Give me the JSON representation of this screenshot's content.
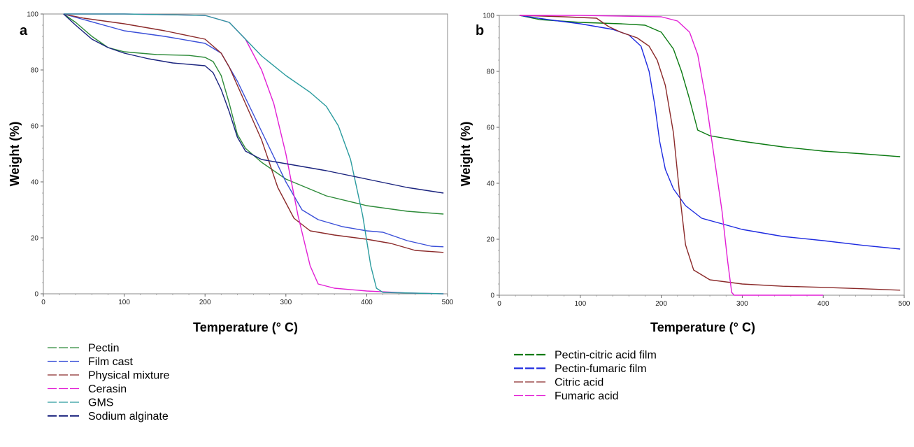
{
  "chart_data": [
    {
      "panel_label": "a",
      "type": "line",
      "xlabel": "Temperature (° C)",
      "ylabel": "Weight (%)",
      "xlim": [
        0,
        500
      ],
      "ylim": [
        0,
        100
      ],
      "xticks": [
        0,
        100,
        200,
        300,
        400,
        500
      ],
      "yticks": [
        0,
        20,
        40,
        60,
        80,
        100
      ],
      "grid": false,
      "legend_position": "below",
      "series": [
        {
          "name": "Pectin",
          "color": "#2e8b3a",
          "dash": "none",
          "points": [
            [
              25,
              100
            ],
            [
              40,
              97
            ],
            [
              60,
              92
            ],
            [
              80,
              88
            ],
            [
              100,
              86.5
            ],
            [
              140,
              85.5
            ],
            [
              180,
              85.2
            ],
            [
              200,
              84.5
            ],
            [
              210,
              83
            ],
            [
              220,
              78
            ],
            [
              230,
              68
            ],
            [
              240,
              57
            ],
            [
              250,
              52
            ],
            [
              270,
              47
            ],
            [
              300,
              41
            ],
            [
              350,
              35
            ],
            [
              400,
              31.5
            ],
            [
              450,
              29.5
            ],
            [
              495,
              28.5
            ]
          ]
        },
        {
          "name": "Film cast",
          "color": "#3a4fd8",
          "dash": "none",
          "points": [
            [
              25,
              100
            ],
            [
              50,
              98
            ],
            [
              100,
              94
            ],
            [
              150,
              92
            ],
            [
              200,
              89.5
            ],
            [
              220,
              86
            ],
            [
              240,
              76
            ],
            [
              260,
              64
            ],
            [
              280,
              52
            ],
            [
              300,
              40
            ],
            [
              320,
              30
            ],
            [
              340,
              26.5
            ],
            [
              370,
              24
            ],
            [
              400,
              22.5
            ],
            [
              420,
              22
            ],
            [
              450,
              19
            ],
            [
              480,
              17
            ],
            [
              495,
              16.8
            ]
          ]
        },
        {
          "name": "Physical mixture",
          "color": "#8b2a2a",
          "dash": "none",
          "points": [
            [
              25,
              100
            ],
            [
              50,
              98.5
            ],
            [
              100,
              96.5
            ],
            [
              150,
              94
            ],
            [
              200,
              91
            ],
            [
              220,
              86
            ],
            [
              230,
              81
            ],
            [
              250,
              68
            ],
            [
              270,
              55
            ],
            [
              290,
              38
            ],
            [
              310,
              27
            ],
            [
              330,
              22.5
            ],
            [
              360,
              21
            ],
            [
              400,
              19.5
            ],
            [
              430,
              18
            ],
            [
              460,
              15.5
            ],
            [
              495,
              14.8
            ]
          ]
        },
        {
          "name": "Cerasin",
          "color": "#e21fd5",
          "dash": "none",
          "points": [
            [
              25,
              100
            ],
            [
              100,
              100
            ],
            [
              200,
              99.5
            ],
            [
              230,
              97
            ],
            [
              250,
              91
            ],
            [
              270,
              80
            ],
            [
              285,
              68
            ],
            [
              300,
              50
            ],
            [
              315,
              28
            ],
            [
              330,
              10
            ],
            [
              340,
              3.5
            ],
            [
              360,
              2
            ],
            [
              400,
              1
            ],
            [
              450,
              0.3
            ],
            [
              495,
              0
            ]
          ]
        },
        {
          "name": "GMS",
          "color": "#2a9b9e",
          "dash": "none",
          "points": [
            [
              25,
              100
            ],
            [
              100,
              100
            ],
            [
              200,
              99.5
            ],
            [
              230,
              97
            ],
            [
              250,
              91
            ],
            [
              270,
              85
            ],
            [
              300,
              78
            ],
            [
              330,
              72
            ],
            [
              350,
              67
            ],
            [
              365,
              60
            ],
            [
              380,
              48
            ],
            [
              395,
              28
            ],
            [
              405,
              10
            ],
            [
              412,
              2
            ],
            [
              420,
              0.5
            ],
            [
              495,
              0
            ]
          ]
        },
        {
          "name": "Sodium alginate",
          "color": "#1a237e",
          "dash": "none",
          "points": [
            [
              25,
              100
            ],
            [
              40,
              96
            ],
            [
              60,
              91
            ],
            [
              80,
              88
            ],
            [
              100,
              86
            ],
            [
              130,
              84
            ],
            [
              160,
              82.5
            ],
            [
              200,
              81.5
            ],
            [
              210,
              79
            ],
            [
              220,
              73
            ],
            [
              230,
              65
            ],
            [
              240,
              56
            ],
            [
              250,
              51
            ],
            [
              270,
              48
            ],
            [
              300,
              46.5
            ],
            [
              350,
              44
            ],
            [
              400,
              41
            ],
            [
              450,
              38
            ],
            [
              495,
              36
            ]
          ]
        }
      ]
    },
    {
      "panel_label": "b",
      "type": "line",
      "xlabel": "Temperature (° C)",
      "ylabel": "Weight (%)",
      "xlim": [
        0,
        500
      ],
      "ylim": [
        0,
        100
      ],
      "xticks": [
        0,
        100,
        200,
        300,
        400,
        500
      ],
      "yticks": [
        0,
        20,
        40,
        60,
        80,
        100
      ],
      "grid": false,
      "legend_position": "below",
      "series": [
        {
          "name": "Pectin-citric acid film",
          "color": "#0b7a12",
          "dash": "none",
          "points": [
            [
              25,
              100
            ],
            [
              50,
              98.5
            ],
            [
              100,
              97.5
            ],
            [
              150,
              97
            ],
            [
              180,
              96.5
            ],
            [
              200,
              94
            ],
            [
              215,
              88
            ],
            [
              225,
              80
            ],
            [
              235,
              70
            ],
            [
              245,
              59
            ],
            [
              260,
              57
            ],
            [
              300,
              55
            ],
            [
              350,
              53
            ],
            [
              400,
              51.5
            ],
            [
              450,
              50.5
            ],
            [
              495,
              49.5
            ]
          ]
        },
        {
          "name": "Pectin-fumaric film",
          "color": "#1e2be0",
          "dash": "none",
          "points": [
            [
              25,
              100
            ],
            [
              60,
              98.5
            ],
            [
              100,
              97
            ],
            [
              140,
              95
            ],
            [
              160,
              93
            ],
            [
              175,
              89
            ],
            [
              185,
              80
            ],
            [
              192,
              68
            ],
            [
              198,
              55
            ],
            [
              205,
              45
            ],
            [
              215,
              38
            ],
            [
              230,
              32
            ],
            [
              250,
              27.5
            ],
            [
              300,
              23.5
            ],
            [
              350,
              21
            ],
            [
              400,
              19.5
            ],
            [
              450,
              17.8
            ],
            [
              495,
              16.5
            ]
          ]
        },
        {
          "name": "Citric acid",
          "color": "#8b2a2a",
          "dash": "none",
          "points": [
            [
              25,
              100
            ],
            [
              80,
              99.5
            ],
            [
              120,
              99
            ],
            [
              135,
              96
            ],
            [
              150,
              94
            ],
            [
              170,
              92
            ],
            [
              185,
              89
            ],
            [
              195,
              84
            ],
            [
              205,
              75
            ],
            [
              215,
              58
            ],
            [
              222,
              38
            ],
            [
              230,
              18
            ],
            [
              240,
              9
            ],
            [
              260,
              5.5
            ],
            [
              300,
              4
            ],
            [
              350,
              3.2
            ],
            [
              400,
              2.8
            ],
            [
              450,
              2.3
            ],
            [
              495,
              1.8
            ]
          ]
        },
        {
          "name": "Fumaric acid",
          "color": "#e21fd5",
          "dash": "none",
          "points": [
            [
              25,
              100
            ],
            [
              100,
              100
            ],
            [
              200,
              99.5
            ],
            [
              220,
              98
            ],
            [
              235,
              94
            ],
            [
              245,
              86
            ],
            [
              255,
              70
            ],
            [
              265,
              50
            ],
            [
              275,
              30
            ],
            [
              282,
              12
            ],
            [
              287,
              1
            ],
            [
              290,
              0
            ],
            [
              400,
              0
            ]
          ]
        }
      ]
    }
  ]
}
